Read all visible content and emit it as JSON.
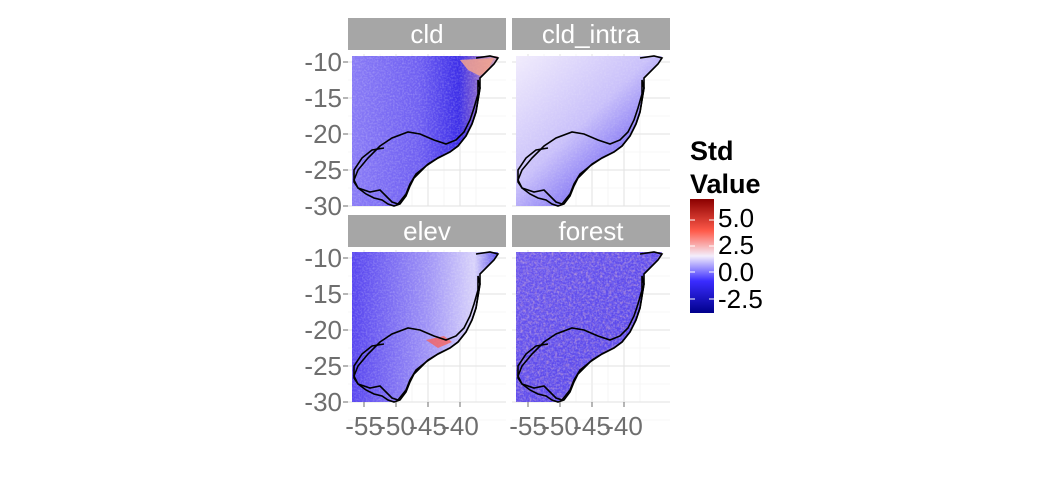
{
  "panels": [
    {
      "label": "cld",
      "theme": "cld"
    },
    {
      "label": "cld_intra",
      "theme": "intra"
    },
    {
      "label": "elev",
      "theme": "elev"
    },
    {
      "label": "forest",
      "theme": "forest"
    }
  ],
  "axes": {
    "y_ticks": [
      "-10",
      "-15",
      "-20",
      "-25",
      "-30"
    ],
    "x_ticks": [
      "-55",
      "-50",
      "-45",
      "-40"
    ]
  },
  "legend": {
    "title_line1": "Std",
    "title_line2": "Value",
    "labels": [
      "5.0",
      "2.5",
      "0.0",
      "-2.5"
    ],
    "colors": {
      "low": "#00008b",
      "mid_low": "#3a2cff",
      "mid": "#f4eefc",
      "mid_high": "#ff5a4a",
      "high": "#8b0000"
    }
  }
}
